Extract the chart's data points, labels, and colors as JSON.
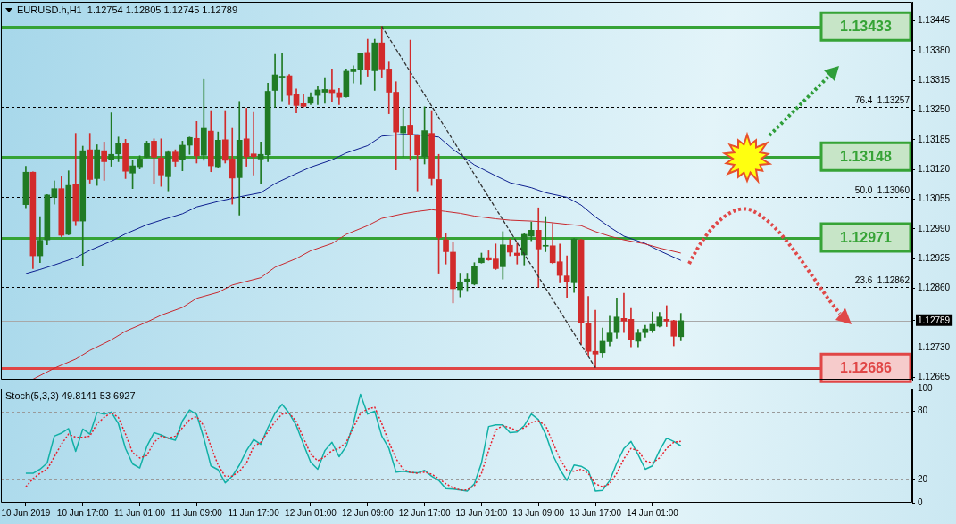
{
  "chart_data": [
    {
      "type": "candlestick",
      "title": "EURUSD.h,H1  1.12754 1.12805 1.12745 1.12789",
      "x": [
        "2019-06-10T09:00",
        "2019-06-10T10:00",
        "2019-06-10T11:00",
        "2019-06-10T12:00",
        "2019-06-10T13:00",
        "2019-06-10T14:00",
        "2019-06-10T15:00",
        "2019-06-10T16:00",
        "2019-06-10T17:00",
        "2019-06-10T18:00",
        "2019-06-10T19:00",
        "2019-06-10T20:00",
        "2019-06-10T21:00",
        "2019-06-10T22:00",
        "2019-06-10T23:00",
        "2019-06-11T00:00",
        "2019-06-11T01:00",
        "2019-06-11T02:00",
        "2019-06-11T03:00",
        "2019-06-11T04:00",
        "2019-06-11T05:00",
        "2019-06-11T06:00",
        "2019-06-11T07:00",
        "2019-06-11T08:00",
        "2019-06-11T09:00",
        "2019-06-11T10:00",
        "2019-06-11T11:00",
        "2019-06-11T12:00",
        "2019-06-11T13:00",
        "2019-06-11T14:00",
        "2019-06-11T15:00",
        "2019-06-11T16:00",
        "2019-06-11T17:00",
        "2019-06-11T18:00",
        "2019-06-11T19:00",
        "2019-06-11T20:00",
        "2019-06-11T21:00",
        "2019-06-11T22:00",
        "2019-06-11T23:00",
        "2019-06-12T00:00",
        "2019-06-12T01:00",
        "2019-06-12T02:00",
        "2019-06-12T03:00",
        "2019-06-12T04:00",
        "2019-06-12T05:00",
        "2019-06-12T06:00",
        "2019-06-12T07:00",
        "2019-06-12T08:00",
        "2019-06-12T09:00",
        "2019-06-12T10:00",
        "2019-06-12T11:00",
        "2019-06-12T12:00",
        "2019-06-12T13:00",
        "2019-06-12T14:00",
        "2019-06-12T15:00",
        "2019-06-12T16:00",
        "2019-06-12T17:00",
        "2019-06-12T18:00",
        "2019-06-12T19:00",
        "2019-06-12T20:00",
        "2019-06-12T21:00",
        "2019-06-12T22:00",
        "2019-06-12T23:00",
        "2019-06-13T00:00",
        "2019-06-13T01:00",
        "2019-06-13T02:00",
        "2019-06-13T03:00",
        "2019-06-13T04:00",
        "2019-06-13T05:00",
        "2019-06-13T06:00",
        "2019-06-13T07:00",
        "2019-06-13T08:00",
        "2019-06-13T09:00",
        "2019-06-13T10:00",
        "2019-06-13T11:00",
        "2019-06-13T12:00",
        "2019-06-13T13:00",
        "2019-06-13T14:00",
        "2019-06-13T15:00",
        "2019-06-13T16:00",
        "2019-06-13T17:00",
        "2019-06-13T18:00",
        "2019-06-13T19:00",
        "2019-06-13T20:00",
        "2019-06-13T21:00",
        "2019-06-13T22:00",
        "2019-06-13T23:00",
        "2019-06-14T00:00",
        "2019-06-14T01:00",
        "2019-06-14T02:00",
        "2019-06-14T03:00",
        "2019-06-14T04:00",
        "2019-06-14T05:00"
      ],
      "ohlc": [
        [
          1.13043,
          1.13127,
          1.13036,
          1.13114
        ],
        [
          1.13114,
          1.13115,
          1.12903,
          1.12931
        ],
        [
          1.12931,
          1.13017,
          1.12916,
          1.12965
        ],
        [
          1.12966,
          1.13065,
          1.12955,
          1.13064
        ],
        [
          1.13059,
          1.13095,
          1.13044,
          1.13078
        ],
        [
          1.13078,
          1.13104,
          1.12973,
          1.12976
        ],
        [
          1.12978,
          1.13117,
          1.12977,
          1.13085
        ],
        [
          1.13087,
          1.13199,
          1.12997,
          1.13007
        ],
        [
          1.13007,
          1.13171,
          1.12909,
          1.13161
        ],
        [
          1.13163,
          1.13199,
          1.1309,
          1.13098
        ],
        [
          1.131,
          1.13174,
          1.13085,
          1.13163
        ],
        [
          1.13161,
          1.1318,
          1.13096,
          1.13137
        ],
        [
          1.13141,
          1.13244,
          1.13127,
          1.13153
        ],
        [
          1.13154,
          1.13191,
          1.13137,
          1.13177
        ],
        [
          1.13178,
          1.13186,
          1.131,
          1.13116
        ],
        [
          1.13112,
          1.1314,
          1.13078,
          1.13128
        ],
        [
          1.13126,
          1.1315,
          1.13121,
          1.13143
        ],
        [
          1.13147,
          1.13182,
          1.13146,
          1.13178
        ],
        [
          1.13182,
          1.13187,
          1.13088,
          1.13147
        ],
        [
          1.13145,
          1.13187,
          1.13083,
          1.13108
        ],
        [
          1.13104,
          1.13161,
          1.13073,
          1.13158
        ],
        [
          1.13158,
          1.13163,
          1.13127,
          1.13137
        ],
        [
          1.13141,
          1.13182,
          1.13117,
          1.13173
        ],
        [
          1.13173,
          1.13191,
          1.13153,
          1.1319
        ],
        [
          1.13188,
          1.13225,
          1.13134,
          1.1315
        ],
        [
          1.13151,
          1.13317,
          1.1314,
          1.1321
        ],
        [
          1.13204,
          1.13249,
          1.13115,
          1.13128
        ],
        [
          1.13126,
          1.13202,
          1.13125,
          1.13184
        ],
        [
          1.13185,
          1.13249,
          1.13134,
          1.1314
        ],
        [
          1.13143,
          1.1321,
          1.13044,
          1.13101
        ],
        [
          1.13102,
          1.13269,
          1.1302,
          1.13184
        ],
        [
          1.13187,
          1.13254,
          1.13127,
          1.13148
        ],
        [
          1.13154,
          1.13245,
          1.13108,
          1.13148
        ],
        [
          1.13143,
          1.1318,
          1.13088,
          1.13153
        ],
        [
          1.13152,
          1.13309,
          1.13137,
          1.13291
        ],
        [
          1.13293,
          1.13372,
          1.13256,
          1.13327
        ],
        [
          1.13322,
          1.13375,
          1.1327,
          1.13324
        ],
        [
          1.13325,
          1.13328,
          1.13262,
          1.13282
        ],
        [
          1.13284,
          1.13296,
          1.13244,
          1.1326
        ],
        [
          1.13264,
          1.13284,
          1.13256,
          1.13258
        ],
        [
          1.13265,
          1.13288,
          1.13262,
          1.13278
        ],
        [
          1.13282,
          1.13303,
          1.13262,
          1.13294
        ],
        [
          1.13289,
          1.13321,
          1.13265,
          1.13295
        ],
        [
          1.13294,
          1.1334,
          1.13267,
          1.13288
        ],
        [
          1.13288,
          1.13297,
          1.13262,
          1.13278
        ],
        [
          1.13279,
          1.1334,
          1.13278,
          1.13335
        ],
        [
          1.13334,
          1.13347,
          1.13309,
          1.1334
        ],
        [
          1.13338,
          1.13375,
          1.13307,
          1.13374
        ],
        [
          1.13376,
          1.13405,
          1.13324,
          1.13338
        ],
        [
          1.13336,
          1.13405,
          1.13293,
          1.13397
        ],
        [
          1.13397,
          1.13433,
          1.13322,
          1.1334
        ],
        [
          1.1334,
          1.13355,
          1.13242,
          1.13289
        ],
        [
          1.13289,
          1.13312,
          1.13119,
          1.13202
        ],
        [
          1.132,
          1.13254,
          1.13148,
          1.13215
        ],
        [
          1.13217,
          1.13403,
          1.1314,
          1.13197
        ],
        [
          1.13195,
          1.13196,
          1.13073,
          1.13152
        ],
        [
          1.13148,
          1.13257,
          1.13132,
          1.13205
        ],
        [
          1.13199,
          1.13249,
          1.13085,
          1.131
        ],
        [
          1.13098,
          1.13153,
          1.12893,
          1.12971
        ],
        [
          1.12966,
          1.12981,
          1.12913,
          1.1294
        ],
        [
          1.12939,
          1.12961,
          1.12828,
          1.12859
        ],
        [
          1.12857,
          1.12893,
          1.12841,
          1.12874
        ],
        [
          1.12875,
          1.12893,
          1.12853,
          1.1288
        ],
        [
          1.12869,
          1.12916,
          1.12867,
          1.12909
        ],
        [
          1.12916,
          1.12937,
          1.12915,
          1.12927
        ],
        [
          1.12927,
          1.12942,
          1.12921,
          1.12922
        ],
        [
          1.12924,
          1.12957,
          1.12901,
          1.12903
        ],
        [
          1.12907,
          1.12984,
          1.1288,
          1.12955
        ],
        [
          1.12954,
          1.12968,
          1.12931,
          1.12939
        ],
        [
          1.12937,
          1.12959,
          1.12913,
          1.12932
        ],
        [
          1.12933,
          1.1298,
          1.12911,
          1.12978
        ],
        [
          1.12974,
          1.13005,
          1.12964,
          1.12987
        ],
        [
          1.12987,
          1.13036,
          1.12862,
          1.12946
        ],
        [
          1.12952,
          1.13017,
          1.1294,
          1.12954
        ],
        [
          1.12953,
          1.13002,
          1.12914,
          1.12916
        ],
        [
          1.12918,
          1.12957,
          1.12872,
          1.12888
        ],
        [
          1.12887,
          1.12931,
          1.1284,
          1.12874
        ],
        [
          1.12872,
          1.12969,
          1.12851,
          1.12968
        ],
        [
          1.12966,
          1.12967,
          1.12737,
          1.12784
        ],
        [
          1.12784,
          1.12842,
          1.12712,
          1.12722
        ],
        [
          1.12722,
          1.12812,
          1.12686,
          1.12716
        ],
        [
          1.12719,
          1.12773,
          1.12708,
          1.12744
        ],
        [
          1.12743,
          1.12799,
          1.12734,
          1.12762
        ],
        [
          1.12763,
          1.12839,
          1.12751,
          1.12797
        ],
        [
          1.12794,
          1.12849,
          1.12763,
          1.12788
        ],
        [
          1.12792,
          1.12816,
          1.12732,
          1.12747
        ],
        [
          1.12744,
          1.1277,
          1.12732,
          1.12762
        ],
        [
          1.12763,
          1.12779,
          1.12753,
          1.12771
        ],
        [
          1.12768,
          1.12808,
          1.12763,
          1.12781
        ],
        [
          1.12777,
          1.12807,
          1.12775,
          1.12797
        ],
        [
          1.12792,
          1.12822,
          1.12776,
          1.12788
        ],
        [
          1.12789,
          1.1279,
          1.12734,
          1.12755
        ],
        [
          1.12754,
          1.12805,
          1.12745,
          1.12789
        ]
      ],
      "colors": [
        "#207a24",
        "#d22b2b",
        "#207a24",
        "#207a24",
        "#207a24",
        "#d22b2b",
        "#207a24",
        "#d22b2b",
        "#207a24",
        "#d22b2b",
        "#207a24",
        "#d22b2b",
        "#207a24",
        "#207a24",
        "#d22b2b",
        "#207a24",
        "#207a24",
        "#207a24",
        "#d22b2b",
        "#d22b2b",
        "#207a24",
        "#d22b2b",
        "#207a24",
        "#207a24",
        "#d22b2b",
        "#207a24",
        "#d22b2b",
        "#207a24",
        "#d22b2b",
        "#d22b2b",
        "#207a24",
        "#d22b2b",
        "#d22b2b",
        "#207a24",
        "#207a24",
        "#207a24",
        "#207a24",
        "#d22b2b",
        "#d22b2b",
        "#d22b2b",
        "#207a24",
        "#207a24",
        "#207a24",
        "#d22b2b",
        "#d22b2b",
        "#207a24",
        "#207a24",
        "#207a24",
        "#d22b2b",
        "#207a24",
        "#d22b2b",
        "#d22b2b",
        "#d22b2b",
        "#207a24",
        "#d22b2b",
        "#d22b2b",
        "#207a24",
        "#d22b2b",
        "#d22b2b",
        "#d22b2b",
        "#d22b2b",
        "#207a24",
        "#207a24",
        "#207a24",
        "#207a24",
        "#d22b2b",
        "#d22b2b",
        "#207a24",
        "#d22b2b",
        "#d22b2b",
        "#207a24",
        "#207a24",
        "#d22b2b",
        "#207a24",
        "#d22b2b",
        "#d22b2b",
        "#d22b2b",
        "#207a24",
        "#d22b2b",
        "#d22b2b",
        "#d22b2b",
        "#207a24",
        "#207a24",
        "#207a24",
        "#d22b2b",
        "#d22b2b",
        "#207a24",
        "#207a24",
        "#207a24",
        "#207a24",
        "#d22b2b",
        "#d22b2b",
        "#207a24"
      ],
      "series": [
        {
          "type": "line",
          "color": "#0d1f8f",
          "x": [
            "2019-06-10T09:00",
            "2019-06-10T11:00",
            "2019-06-10T13:00",
            "2019-06-10T16:00",
            "2019-06-10T18:00",
            "2019-06-10T21:00",
            "2019-06-10T23:00",
            "2019-06-11T02:00",
            "2019-06-11T04:00",
            "2019-06-11T07:00",
            "2019-06-11T09:00",
            "2019-06-11T12:00",
            "2019-06-11T14:00",
            "2019-06-11T18:00",
            "2019-06-11T20:00",
            "2019-06-11T23:00",
            "2019-06-12T01:00",
            "2019-06-12T04:00",
            "2019-06-12T06:00",
            "2019-06-12T09:00",
            "2019-06-12T11:00",
            "2019-06-12T14:00",
            "2019-06-12T16:00",
            "2019-06-12T19:00",
            "2019-06-12T21:00",
            "2019-06-13T00:00",
            "2019-06-13T03:00",
            "2019-06-13T05:00",
            "2019-06-13T08:00",
            "2019-06-13T10:00",
            "2019-06-13T13:00",
            "2019-06-13T15:00",
            "2019-06-13T17:00",
            "2019-06-13T19:00",
            "2019-06-13T21:00",
            "2019-06-14T00:00",
            "2019-06-14T02:00",
            "2019-06-14T05:00"
          ],
          "values": [
            1.12892,
            1.12901,
            1.12911,
            1.12927,
            1.12943,
            1.12963,
            1.12979,
            1.12999,
            1.13009,
            1.13023,
            1.13038,
            1.1305,
            1.13057,
            1.13069,
            1.13089,
            1.13111,
            1.13125,
            1.13141,
            1.13156,
            1.13172,
            1.13193,
            1.13197,
            1.13196,
            1.13191,
            1.13164,
            1.1313,
            1.13106,
            1.13091,
            1.1308,
            1.13069,
            1.13059,
            1.13042,
            1.13016,
            1.12994,
            1.12974,
            1.12958,
            1.12942,
            1.12921
          ]
        },
        {
          "type": "line",
          "color": "#c8282e",
          "x": [
            "2019-06-10T10:00",
            "2019-06-10T13:00",
            "2019-06-10T16:00",
            "2019-06-10T18:00",
            "2019-06-10T21:00",
            "2019-06-10T23:00",
            "2019-06-11T02:00",
            "2019-06-11T04:00",
            "2019-06-11T07:00",
            "2019-06-11T09:00",
            "2019-06-11T12:00",
            "2019-06-11T14:00",
            "2019-06-11T18:00",
            "2019-06-11T20:00",
            "2019-06-11T23:00",
            "2019-06-12T01:00",
            "2019-06-12T04:00",
            "2019-06-12T06:00",
            "2019-06-12T09:00",
            "2019-06-12T11:00",
            "2019-06-12T14:00",
            "2019-06-12T16:00",
            "2019-06-12T18:00",
            "2019-06-12T20:00",
            "2019-06-12T22:00",
            "2019-06-13T00:00",
            "2019-06-13T03:00",
            "2019-06-13T05:00",
            "2019-06-13T08:00",
            "2019-06-13T10:00",
            "2019-06-13T13:00",
            "2019-06-13T15:00",
            "2019-06-13T17:00",
            "2019-06-13T19:00",
            "2019-06-13T21:00",
            "2019-06-14T00:00",
            "2019-06-14T02:00",
            "2019-06-14T05:00"
          ],
          "values": [
            1.12661,
            1.12685,
            1.12705,
            1.12724,
            1.12747,
            1.12766,
            1.12786,
            1.12801,
            1.12818,
            1.12838,
            1.12851,
            1.12867,
            1.12883,
            1.12906,
            1.12925,
            1.12942,
            1.12958,
            1.12978,
            1.12997,
            1.13013,
            1.13023,
            1.13028,
            1.13032,
            1.13028,
            1.13024,
            1.13018,
            1.13012,
            1.13009,
            1.13007,
            1.13005,
            1.13,
            1.12997,
            1.12984,
            1.12974,
            1.12966,
            1.12957,
            1.12948,
            1.12937
          ]
        },
        {
          "type": "line",
          "color": "#333333",
          "line_style": "dashed",
          "x": [
            "2019-06-12T11:00",
            "2019-06-13T17:00"
          ],
          "values": [
            1.13433,
            1.12686
          ]
        }
      ],
      "ref_lines": [
        {
          "axis": "y",
          "value": 1.13433,
          "label": "1.13433",
          "color": "#36a336"
        },
        {
          "axis": "y",
          "value": 1.13148,
          "label": "1.13148",
          "color": "#36a336"
        },
        {
          "axis": "y",
          "value": 1.12971,
          "label": "1.12971",
          "color": "#36a336"
        },
        {
          "axis": "y",
          "value": 1.12686,
          "label": "1.12686",
          "color": "#e04646"
        },
        {
          "axis": "y",
          "value": 1.13257,
          "label": "76.4  1.13257",
          "color": "#000000",
          "line_style": "dashed"
        },
        {
          "axis": "y",
          "value": 1.1306,
          "label": "50.0  1.13060",
          "color": "#000000",
          "line_style": "dashed"
        },
        {
          "axis": "y",
          "value": 1.12862,
          "label": "23.6  1.12862",
          "color": "#000000",
          "line_style": "dashed"
        },
        {
          "axis": "y",
          "value": 1.12789,
          "color": "#a8a8a8"
        }
      ],
      "xlim": [
        "2019-06-10T05:30",
        "2019-06-15T13:30"
      ],
      "ylim": [
        1.1266,
        1.13487
      ],
      "yticks": [
        1.12665,
        {
          "value": 1.1273,
          "label": "1.12730"
        },
        1.12789,
        {
          "value": 1.1286,
          "label": "1.12860"
        },
        1.12925,
        {
          "value": 1.1299,
          "label": "1.12990"
        },
        1.13055,
        {
          "value": 1.1312,
          "label": "1.13120"
        },
        1.13185,
        {
          "value": 1.1325,
          "label": "1.13250"
        },
        1.13315,
        {
          "value": 1.1338,
          "label": "1.13380"
        },
        1.13445
      ],
      "tick_labels": "y"
    },
    {
      "type": "line",
      "title": "Stoch(5,3,3) 49.8141 53.6927",
      "x": [
        "2019-06-10T09:00",
        "2019-06-10T10:00",
        "2019-06-10T11:00",
        "2019-06-10T12:00",
        "2019-06-10T13:00",
        "2019-06-10T14:00",
        "2019-06-10T15:00",
        "2019-06-10T16:00",
        "2019-06-10T17:00",
        "2019-06-10T18:00",
        "2019-06-10T19:00",
        "2019-06-10T20:00",
        "2019-06-10T21:00",
        "2019-06-10T22:00",
        "2019-06-10T23:00",
        "2019-06-11T00:00",
        "2019-06-11T01:00",
        "2019-06-11T02:00",
        "2019-06-11T03:00",
        "2019-06-11T04:00",
        "2019-06-11T05:00",
        "2019-06-11T06:00",
        "2019-06-11T07:00",
        "2019-06-11T08:00",
        "2019-06-11T09:00",
        "2019-06-11T10:00",
        "2019-06-11T11:00",
        "2019-06-11T12:00",
        "2019-06-11T13:00",
        "2019-06-11T14:00",
        "2019-06-11T15:00",
        "2019-06-11T16:00",
        "2019-06-11T17:00",
        "2019-06-11T18:00",
        "2019-06-11T19:00",
        "2019-06-11T20:00",
        "2019-06-11T21:00",
        "2019-06-11T22:00",
        "2019-06-11T23:00",
        "2019-06-12T00:00",
        "2019-06-12T01:00",
        "2019-06-12T02:00",
        "2019-06-12T03:00",
        "2019-06-12T04:00",
        "2019-06-12T05:00",
        "2019-06-12T06:00",
        "2019-06-12T07:00",
        "2019-06-12T08:00",
        "2019-06-12T09:00",
        "2019-06-12T10:00",
        "2019-06-12T11:00",
        "2019-06-12T12:00",
        "2019-06-12T13:00",
        "2019-06-12T14:00",
        "2019-06-12T15:00",
        "2019-06-12T16:00",
        "2019-06-12T17:00",
        "2019-06-12T18:00",
        "2019-06-12T19:00",
        "2019-06-12T20:00",
        "2019-06-12T21:00",
        "2019-06-12T22:00",
        "2019-06-12T23:00",
        "2019-06-13T00:00",
        "2019-06-13T01:00",
        "2019-06-13T02:00",
        "2019-06-13T03:00",
        "2019-06-13T04:00",
        "2019-06-13T05:00",
        "2019-06-13T06:00",
        "2019-06-13T07:00",
        "2019-06-13T08:00",
        "2019-06-13T09:00",
        "2019-06-13T10:00",
        "2019-06-13T11:00",
        "2019-06-13T12:00",
        "2019-06-13T13:00",
        "2019-06-13T14:00",
        "2019-06-13T15:00",
        "2019-06-13T16:00",
        "2019-06-13T17:00",
        "2019-06-13T18:00",
        "2019-06-13T19:00",
        "2019-06-13T20:00",
        "2019-06-13T21:00",
        "2019-06-13T22:00",
        "2019-06-13T23:00",
        "2019-06-14T00:00",
        "2019-06-14T01:00",
        "2019-06-14T02:00",
        "2019-06-14T03:00",
        "2019-06-14T04:00",
        "2019-06-14T05:00"
      ],
      "series": [
        {
          "color": "#11b0a6",
          "values": [
            25.7,
            25.7,
            29.3,
            34.8,
            58.3,
            60.9,
            64.9,
            44.9,
            64.5,
            60.1,
            79.0,
            77.6,
            79.4,
            69.2,
            47.5,
            34.0,
            30.4,
            49.3,
            61.3,
            59.4,
            56.5,
            54.7,
            71.7,
            81.2,
            77.2,
            56.5,
            32.2,
            28.9,
            17.4,
            23.2,
            33.0,
            45.6,
            55.4,
            51.1,
            65.6,
            78.3,
            86.2,
            78.3,
            67.4,
            51.1,
            35.5,
            29.3,
            45.6,
            52.9,
            40.2,
            49.3,
            69.2,
            95.0,
            77.6,
            80.1,
            58.3,
            47.5,
            26.8,
            27.5,
            26.5,
            26.1,
            28.3,
            23.2,
            19.5,
            12.3,
            12.0,
            11.2,
            10.1,
            16.6,
            34.8,
            66.7,
            68.1,
            68.1,
            61.3,
            62.0,
            67.4,
            77.6,
            72.8,
            60.1,
            42.0,
            29.3,
            19.5,
            33.0,
            31.9,
            28.3,
            10.1,
            10.8,
            19.2,
            34.8,
            47.5,
            53.6,
            42.0,
            29.3,
            32.2,
            45.6,
            56.5,
            53.6,
            49.8
          ]
        },
        {
          "color": "#e8202e",
          "line_style": "dashed",
          "values": [
            13.8,
            21.0,
            25.7,
            29.3,
            40.2,
            51.1,
            60.1,
            57.3,
            57.3,
            58.3,
            69.2,
            74.6,
            79.0,
            74.6,
            60.1,
            43.8,
            39.1,
            41.3,
            52.9,
            58.3,
            56.5,
            58.3,
            65.6,
            72.8,
            75.4,
            67.4,
            49.3,
            33.0,
            23.2,
            23.2,
            27.5,
            34.8,
            49.3,
            52.9,
            62.0,
            71.0,
            77.6,
            78.3,
            71.0,
            56.5,
            42.7,
            36.6,
            40.2,
            45.6,
            47.5,
            52.9,
            65.6,
            78.3,
            81.9,
            83.7,
            69.2,
            52.9,
            38.4,
            29.3,
            26.5,
            25.7,
            26.8,
            25.0,
            21.0,
            16.6,
            13.0,
            11.2,
            11.2,
            14.8,
            25.7,
            45.6,
            63.8,
            67.4,
            65.6,
            63.1,
            65.6,
            70.3,
            71.7,
            67.4,
            52.9,
            38.4,
            28.3,
            27.5,
            29.3,
            25.7,
            16.6,
            13.8,
            16.6,
            25.7,
            38.4,
            47.5,
            45.6,
            36.6,
            34.8,
            39.1,
            47.5,
            52.9,
            53.7
          ]
        }
      ],
      "ref_lines": [
        {
          "axis": "y",
          "value": 80,
          "color": "#9a9a9a",
          "line_style": "dashed"
        },
        {
          "axis": "y",
          "value": 20,
          "color": "#9a9a9a",
          "line_style": "dashed"
        }
      ],
      "xlim": [
        "2019-06-10T05:30",
        "2019-06-15T13:30"
      ],
      "xticks": [
        {
          "value": "2019-06-10T09:00",
          "label": "10 Jun 2019"
        },
        {
          "value": "2019-06-10T17:00",
          "label": "10 Jun 17:00"
        },
        {
          "value": "2019-06-11T01:00",
          "label": "11 Jun 01:00"
        },
        {
          "value": "2019-06-11T09:00",
          "label": "11 Jun 09:00"
        },
        {
          "value": "2019-06-11T17:00",
          "label": "11 Jun 17:00"
        },
        {
          "value": "2019-06-12T01:00",
          "label": "12 Jun 01:00"
        },
        {
          "value": "2019-06-12T09:00",
          "label": "12 Jun 09:00"
        },
        {
          "value": "2019-06-12T17:00",
          "label": "12 Jun 17:00"
        },
        {
          "value": "2019-06-13T01:00",
          "label": "13 Jun 01:00"
        },
        {
          "value": "2019-06-13T09:00",
          "label": "13 Jun 09:00"
        },
        {
          "value": "2019-06-13T17:00",
          "label": "13 Jun 17:00"
        },
        {
          "value": "2019-06-14T01:00",
          "label": "14 Jun 01:00"
        }
      ],
      "ylim": [
        0,
        100
      ],
      "yticks": [
        0,
        20,
        80,
        100
      ]
    }
  ]
}
